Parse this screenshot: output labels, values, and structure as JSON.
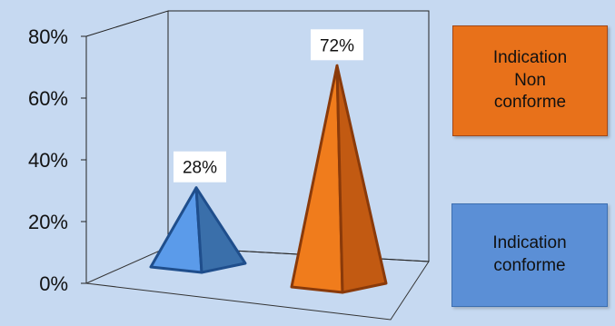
{
  "chart_data": {
    "type": "bar",
    "style": "3d-pyramid",
    "categories": [
      "Indication conforme",
      "Indication Non conforme"
    ],
    "values": [
      28,
      72
    ],
    "data_labels": [
      "28%",
      "72%"
    ],
    "colors": [
      "#5b9bea",
      "#f07c1c"
    ],
    "ylim": [
      0,
      80
    ],
    "yticks": [
      "0%",
      "20%",
      "40%",
      "60%",
      "80%"
    ],
    "legend_position": "right",
    "legend": [
      {
        "label": "Indication\nNon\nconforme",
        "color": "#e8711a"
      },
      {
        "label": "Indication\nconforme",
        "color": "#5b8fd6"
      }
    ],
    "grid": false
  }
}
